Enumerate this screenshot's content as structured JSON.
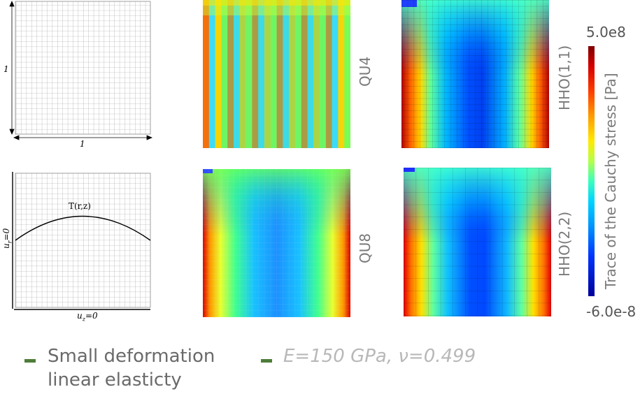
{
  "mesh_panel": {
    "dim_vertical": "1",
    "dim_horizontal": "1"
  },
  "bc_panel": {
    "load_label": "T(r,z)",
    "left_bc": "u",
    "left_bc_sub": "r",
    "left_bc_rest": "=0",
    "bottom_bc": "u",
    "bottom_bc_sub": "z",
    "bottom_bc_rest": "=0"
  },
  "plots": [
    {
      "id": "qu4",
      "label": "QU4"
    },
    {
      "id": "hho11",
      "label": "HHO(1,1)"
    },
    {
      "id": "qu8",
      "label": "QU8"
    },
    {
      "id": "hho22",
      "label": "HHO(2,2)"
    }
  ],
  "colorbar": {
    "title": "Trace of the Cauchy stress [Pa]",
    "max_label": "5.0e8",
    "min_label": "-6.0e-8"
  },
  "captions": {
    "line1": "Small deformation",
    "line2": "linear elasticty",
    "params": "E=150 GPa, ν=0.499"
  },
  "colors": {
    "bullet": "#4e7d3a",
    "label_gray": "#7a7a7a",
    "params_gray": "#b8b8b8"
  }
}
